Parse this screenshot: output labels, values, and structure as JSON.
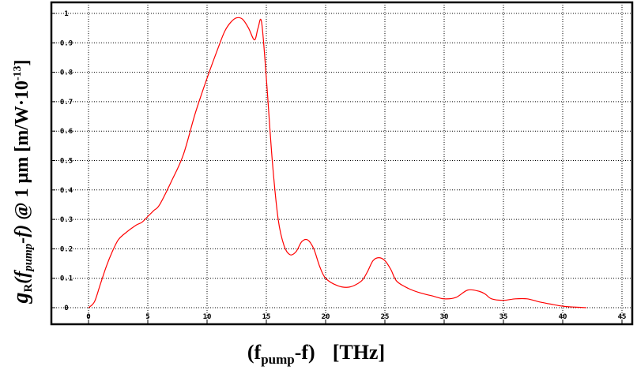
{
  "chart_data": {
    "type": "line",
    "title": "",
    "xlabel": {
      "open": "(f",
      "sub": "pump",
      "close": "-f)",
      "unit": "[THz]"
    },
    "ylabel": {
      "g": "g",
      "sub_r": "R",
      "paren_open": "(f",
      "sub_pump": "pump",
      "paren_close": "-f)",
      "at": " @ 1 μm [m/W·10",
      "exp": "-13",
      "end": "]"
    },
    "xlim": [
      0,
      45
    ],
    "ylim": [
      0,
      1
    ],
    "xticks": [
      "0",
      "5",
      "10",
      "15",
      "20",
      "25",
      "30",
      "35",
      "40",
      "45"
    ],
    "yticks": [
      "0",
      "0.1",
      "0.2",
      "0.3",
      "0.4",
      "0.5",
      "0.6",
      "0.7",
      "0.8",
      "0.9",
      "1"
    ],
    "grid": true,
    "colors": {
      "line": "#ff0000",
      "grid": "#000000",
      "frame": "#000000"
    },
    "series": [
      {
        "x": [
          0,
          0.5,
          1,
          1.5,
          2,
          2.5,
          3,
          4,
          4.5,
          5,
          5.5,
          6,
          7,
          8,
          9,
          10,
          11,
          11.5,
          12,
          12.5,
          13,
          13.5,
          14,
          14.3,
          14.6,
          15,
          15.5,
          16,
          16.5,
          17,
          17.5,
          18,
          18.5,
          19,
          19.5,
          20,
          21,
          22,
          23,
          23.5,
          24,
          24.5,
          25,
          25.5,
          26,
          27,
          28,
          29,
          30,
          31,
          32,
          33,
          33.5,
          34,
          35,
          36,
          37,
          38,
          39,
          40,
          41,
          42
        ],
        "y": [
          0,
          0.02,
          0.08,
          0.14,
          0.19,
          0.23,
          0.25,
          0.28,
          0.29,
          0.31,
          0.33,
          0.35,
          0.43,
          0.52,
          0.66,
          0.78,
          0.89,
          0.94,
          0.97,
          0.985,
          0.98,
          0.95,
          0.91,
          0.95,
          0.97,
          0.78,
          0.5,
          0.3,
          0.21,
          0.18,
          0.19,
          0.225,
          0.23,
          0.2,
          0.14,
          0.1,
          0.075,
          0.07,
          0.09,
          0.12,
          0.16,
          0.17,
          0.16,
          0.13,
          0.09,
          0.065,
          0.05,
          0.04,
          0.03,
          0.035,
          0.06,
          0.055,
          0.045,
          0.03,
          0.025,
          0.03,
          0.03,
          0.02,
          0.012,
          0.005,
          0.002,
          0
        ]
      }
    ]
  }
}
